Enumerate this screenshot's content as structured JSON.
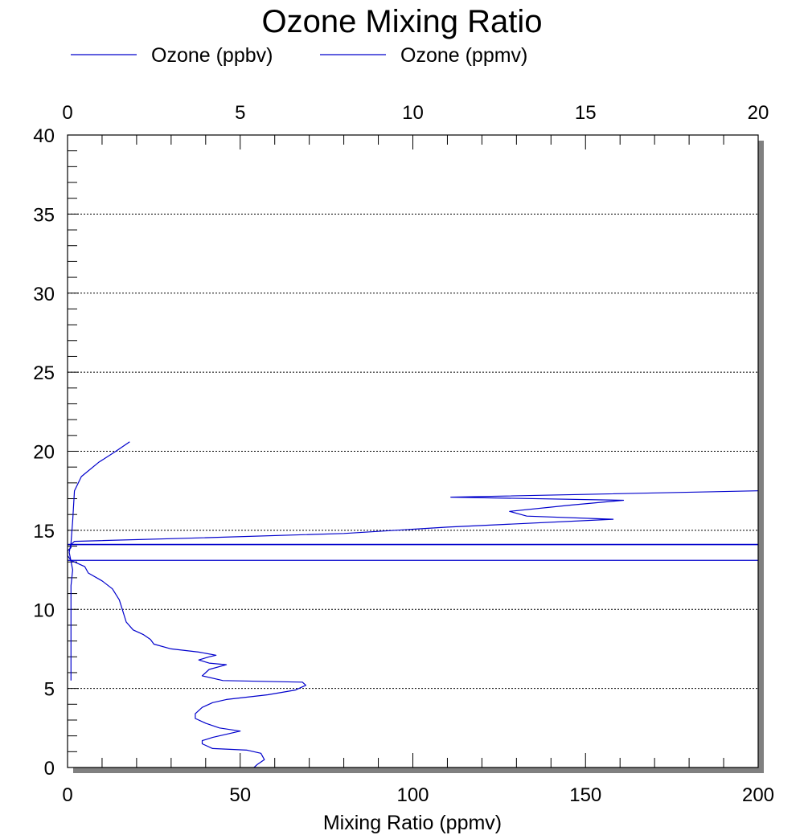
{
  "chart_data": {
    "type": "line",
    "title": "Ozone Mixing Ratio",
    "xlabel": "Mixing Ratio (ppmv)",
    "ylabel": "",
    "x_bottom": {
      "lim": [
        0,
        200
      ],
      "ticks": [
        0,
        50,
        100,
        150,
        200
      ]
    },
    "x_top": {
      "lim": [
        0,
        20
      ],
      "ticks": [
        0,
        5,
        10,
        15,
        20
      ]
    },
    "y": {
      "lim": [
        0,
        40
      ],
      "ticks": [
        0,
        5,
        10,
        15,
        20,
        25,
        30,
        35,
        40
      ],
      "minor_step": 1
    },
    "grid": {
      "y": true,
      "x": false
    },
    "legend_position": "top",
    "colors": {
      "series": "#0000cc",
      "shadow": "#808080",
      "grid": "#000000"
    },
    "series": [
      {
        "name": "Ozone (ppbv)",
        "axis": "bottom",
        "points": [
          [
            54,
            0.0
          ],
          [
            55,
            0.2
          ],
          [
            57,
            0.5
          ],
          [
            56,
            0.9
          ],
          [
            52,
            1.1
          ],
          [
            42,
            1.2
          ],
          [
            39,
            1.5
          ],
          [
            39,
            1.7
          ],
          [
            42,
            1.9
          ],
          [
            50,
            2.3
          ],
          [
            44,
            2.5
          ],
          [
            40,
            2.8
          ],
          [
            37,
            3.1
          ],
          [
            37,
            3.4
          ],
          [
            39,
            3.8
          ],
          [
            42,
            4.1
          ],
          [
            46,
            4.3
          ],
          [
            58,
            4.6
          ],
          [
            66,
            4.9
          ],
          [
            69,
            5.2
          ],
          [
            68,
            5.4
          ],
          [
            45,
            5.5
          ],
          [
            39,
            5.8
          ],
          [
            40,
            6.0
          ],
          [
            41,
            6.2
          ],
          [
            46,
            6.5
          ],
          [
            41,
            6.6
          ],
          [
            38,
            6.8
          ],
          [
            41,
            7.0
          ],
          [
            43,
            7.1
          ],
          [
            38,
            7.3
          ],
          [
            30,
            7.5
          ],
          [
            25,
            7.8
          ],
          [
            24,
            8.1
          ],
          [
            22,
            8.4
          ],
          [
            19,
            8.7
          ],
          [
            17,
            9.2
          ],
          [
            16,
            9.9
          ],
          [
            15,
            10.6
          ],
          [
            13,
            11.3
          ],
          [
            10,
            11.8
          ],
          [
            6,
            12.3
          ],
          [
            5,
            12.7
          ],
          [
            3,
            12.9
          ],
          [
            1,
            13.1
          ],
          [
            0,
            13.4
          ],
          [
            0,
            13.7
          ],
          [
            1,
            13.9
          ],
          [
            1,
            14.1
          ],
          [
            2,
            14.3
          ],
          [
            35,
            14.5
          ],
          [
            80,
            14.8
          ],
          [
            110,
            15.2
          ],
          [
            158,
            15.7
          ],
          [
            133,
            15.9
          ],
          [
            128,
            16.2
          ],
          [
            146,
            16.6
          ],
          [
            161,
            16.9
          ],
          [
            111,
            17.1
          ],
          [
            200,
            17.5
          ]
        ]
      },
      {
        "name": "Ozone (ppmv)",
        "axis": "top",
        "points": [
          [
            0.1,
            5.5
          ],
          [
            0.1,
            7.5
          ],
          [
            0.1,
            9.5
          ],
          [
            0.1,
            11.5
          ],
          [
            0.15,
            12.5
          ],
          [
            0.05,
            13.6
          ],
          [
            0.1,
            14.2
          ],
          [
            0.15,
            15.6
          ],
          [
            0.2,
            17.5
          ],
          [
            0.4,
            18.4
          ],
          [
            0.9,
            19.3
          ],
          [
            1.4,
            20.0
          ],
          [
            1.8,
            20.6
          ]
        ]
      }
    ],
    "horizontal_lines": [
      {
        "y": 13.1,
        "x_start": 0,
        "x_end": 200,
        "bold": false
      },
      {
        "y": 14.1,
        "x_start": 0,
        "x_end": 200,
        "bold": true
      }
    ]
  }
}
